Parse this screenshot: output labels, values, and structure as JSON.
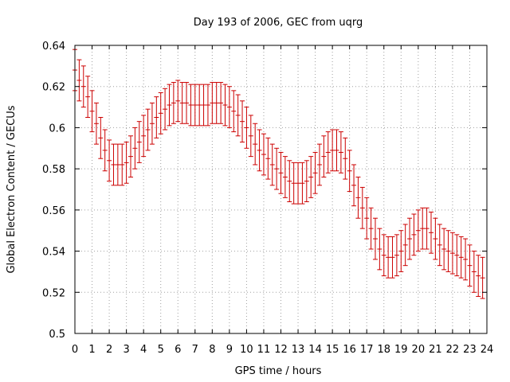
{
  "chart_data": {
    "type": "line",
    "style": "errorbars",
    "title": "Day 193 of 2006, GEC from uqrg",
    "xlabel": "GPS time / hours",
    "ylabel": "Global Electron Content / GECUs",
    "xlim": [
      0,
      24
    ],
    "ylim": [
      0.5,
      0.64
    ],
    "xticks": [
      "0",
      "1",
      "2",
      "3",
      "4",
      "5",
      "6",
      "7",
      "8",
      "9",
      "10",
      "11",
      "12",
      "13",
      "14",
      "15",
      "16",
      "17",
      "18",
      "19",
      "20",
      "21",
      "22",
      "23",
      "24"
    ],
    "yticks": [
      "0.5",
      "0.52",
      "0.54",
      "0.56",
      "0.58",
      "0.6",
      "0.62",
      "0.64"
    ],
    "grid": true,
    "series": [
      {
        "name": "GEC",
        "color": "#cc0000",
        "points": [
          {
            "x": 0.0,
            "y": 0.628,
            "err": 0.01
          },
          {
            "x": 0.25,
            "y": 0.623,
            "err": 0.01
          },
          {
            "x": 0.5,
            "y": 0.62,
            "err": 0.01
          },
          {
            "x": 0.75,
            "y": 0.615,
            "err": 0.01
          },
          {
            "x": 1.0,
            "y": 0.608,
            "err": 0.01
          },
          {
            "x": 1.25,
            "y": 0.602,
            "err": 0.01
          },
          {
            "x": 1.5,
            "y": 0.595,
            "err": 0.01
          },
          {
            "x": 1.75,
            "y": 0.589,
            "err": 0.01
          },
          {
            "x": 2.0,
            "y": 0.584,
            "err": 0.01
          },
          {
            "x": 2.25,
            "y": 0.582,
            "err": 0.01
          },
          {
            "x": 2.5,
            "y": 0.582,
            "err": 0.01
          },
          {
            "x": 2.75,
            "y": 0.582,
            "err": 0.01
          },
          {
            "x": 3.0,
            "y": 0.583,
            "err": 0.01
          },
          {
            "x": 3.25,
            "y": 0.586,
            "err": 0.01
          },
          {
            "x": 3.5,
            "y": 0.59,
            "err": 0.01
          },
          {
            "x": 3.75,
            "y": 0.593,
            "err": 0.01
          },
          {
            "x": 4.0,
            "y": 0.596,
            "err": 0.01
          },
          {
            "x": 4.25,
            "y": 0.599,
            "err": 0.01
          },
          {
            "x": 4.5,
            "y": 0.602,
            "err": 0.01
          },
          {
            "x": 4.75,
            "y": 0.605,
            "err": 0.01
          },
          {
            "x": 5.0,
            "y": 0.607,
            "err": 0.01
          },
          {
            "x": 5.25,
            "y": 0.609,
            "err": 0.01
          },
          {
            "x": 5.5,
            "y": 0.611,
            "err": 0.01
          },
          {
            "x": 5.75,
            "y": 0.612,
            "err": 0.01
          },
          {
            "x": 6.0,
            "y": 0.613,
            "err": 0.01
          },
          {
            "x": 6.25,
            "y": 0.612,
            "err": 0.01
          },
          {
            "x": 6.5,
            "y": 0.612,
            "err": 0.01
          },
          {
            "x": 6.75,
            "y": 0.611,
            "err": 0.01
          },
          {
            "x": 7.0,
            "y": 0.611,
            "err": 0.01
          },
          {
            "x": 7.25,
            "y": 0.611,
            "err": 0.01
          },
          {
            "x": 7.5,
            "y": 0.611,
            "err": 0.01
          },
          {
            "x": 7.75,
            "y": 0.611,
            "err": 0.01
          },
          {
            "x": 8.0,
            "y": 0.612,
            "err": 0.01
          },
          {
            "x": 8.25,
            "y": 0.612,
            "err": 0.01
          },
          {
            "x": 8.5,
            "y": 0.612,
            "err": 0.01
          },
          {
            "x": 8.75,
            "y": 0.611,
            "err": 0.01
          },
          {
            "x": 9.0,
            "y": 0.61,
            "err": 0.01
          },
          {
            "x": 9.25,
            "y": 0.608,
            "err": 0.01
          },
          {
            "x": 9.5,
            "y": 0.606,
            "err": 0.01
          },
          {
            "x": 9.75,
            "y": 0.603,
            "err": 0.01
          },
          {
            "x": 10.0,
            "y": 0.6,
            "err": 0.01
          },
          {
            "x": 10.25,
            "y": 0.596,
            "err": 0.01
          },
          {
            "x": 10.5,
            "y": 0.592,
            "err": 0.01
          },
          {
            "x": 10.75,
            "y": 0.589,
            "err": 0.01
          },
          {
            "x": 11.0,
            "y": 0.587,
            "err": 0.01
          },
          {
            "x": 11.25,
            "y": 0.585,
            "err": 0.01
          },
          {
            "x": 11.5,
            "y": 0.582,
            "err": 0.01
          },
          {
            "x": 11.75,
            "y": 0.58,
            "err": 0.01
          },
          {
            "x": 12.0,
            "y": 0.578,
            "err": 0.01
          },
          {
            "x": 12.25,
            "y": 0.576,
            "err": 0.01
          },
          {
            "x": 12.5,
            "y": 0.574,
            "err": 0.01
          },
          {
            "x": 12.75,
            "y": 0.573,
            "err": 0.01
          },
          {
            "x": 13.0,
            "y": 0.573,
            "err": 0.01
          },
          {
            "x": 13.25,
            "y": 0.573,
            "err": 0.01
          },
          {
            "x": 13.5,
            "y": 0.574,
            "err": 0.01
          },
          {
            "x": 13.75,
            "y": 0.576,
            "err": 0.01
          },
          {
            "x": 14.0,
            "y": 0.578,
            "err": 0.01
          },
          {
            "x": 14.25,
            "y": 0.582,
            "err": 0.01
          },
          {
            "x": 14.5,
            "y": 0.586,
            "err": 0.01
          },
          {
            "x": 14.75,
            "y": 0.588,
            "err": 0.01
          },
          {
            "x": 15.0,
            "y": 0.589,
            "err": 0.01
          },
          {
            "x": 15.25,
            "y": 0.589,
            "err": 0.01
          },
          {
            "x": 15.5,
            "y": 0.588,
            "err": 0.01
          },
          {
            "x": 15.75,
            "y": 0.585,
            "err": 0.01
          },
          {
            "x": 16.0,
            "y": 0.579,
            "err": 0.01
          },
          {
            "x": 16.25,
            "y": 0.572,
            "err": 0.01
          },
          {
            "x": 16.5,
            "y": 0.566,
            "err": 0.01
          },
          {
            "x": 16.75,
            "y": 0.561,
            "err": 0.01
          },
          {
            "x": 17.0,
            "y": 0.556,
            "err": 0.01
          },
          {
            "x": 17.25,
            "y": 0.551,
            "err": 0.01
          },
          {
            "x": 17.5,
            "y": 0.546,
            "err": 0.01
          },
          {
            "x": 17.75,
            "y": 0.541,
            "err": 0.01
          },
          {
            "x": 18.0,
            "y": 0.538,
            "err": 0.01
          },
          {
            "x": 18.25,
            "y": 0.537,
            "err": 0.01
          },
          {
            "x": 18.5,
            "y": 0.537,
            "err": 0.01
          },
          {
            "x": 18.75,
            "y": 0.538,
            "err": 0.01
          },
          {
            "x": 19.0,
            "y": 0.54,
            "err": 0.01
          },
          {
            "x": 19.25,
            "y": 0.543,
            "err": 0.01
          },
          {
            "x": 19.5,
            "y": 0.546,
            "err": 0.01
          },
          {
            "x": 19.75,
            "y": 0.548,
            "err": 0.01
          },
          {
            "x": 20.0,
            "y": 0.55,
            "err": 0.01
          },
          {
            "x": 20.25,
            "y": 0.551,
            "err": 0.01
          },
          {
            "x": 20.5,
            "y": 0.551,
            "err": 0.01
          },
          {
            "x": 20.75,
            "y": 0.549,
            "err": 0.01
          },
          {
            "x": 21.0,
            "y": 0.546,
            "err": 0.01
          },
          {
            "x": 21.25,
            "y": 0.543,
            "err": 0.01
          },
          {
            "x": 21.5,
            "y": 0.541,
            "err": 0.01
          },
          {
            "x": 21.75,
            "y": 0.54,
            "err": 0.01
          },
          {
            "x": 22.0,
            "y": 0.539,
            "err": 0.01
          },
          {
            "x": 22.25,
            "y": 0.538,
            "err": 0.01
          },
          {
            "x": 22.5,
            "y": 0.537,
            "err": 0.01
          },
          {
            "x": 22.75,
            "y": 0.536,
            "err": 0.01
          },
          {
            "x": 23.0,
            "y": 0.533,
            "err": 0.01
          },
          {
            "x": 23.25,
            "y": 0.53,
            "err": 0.01
          },
          {
            "x": 23.5,
            "y": 0.528,
            "err": 0.01
          },
          {
            "x": 23.75,
            "y": 0.527,
            "err": 0.01
          }
        ]
      }
    ]
  }
}
